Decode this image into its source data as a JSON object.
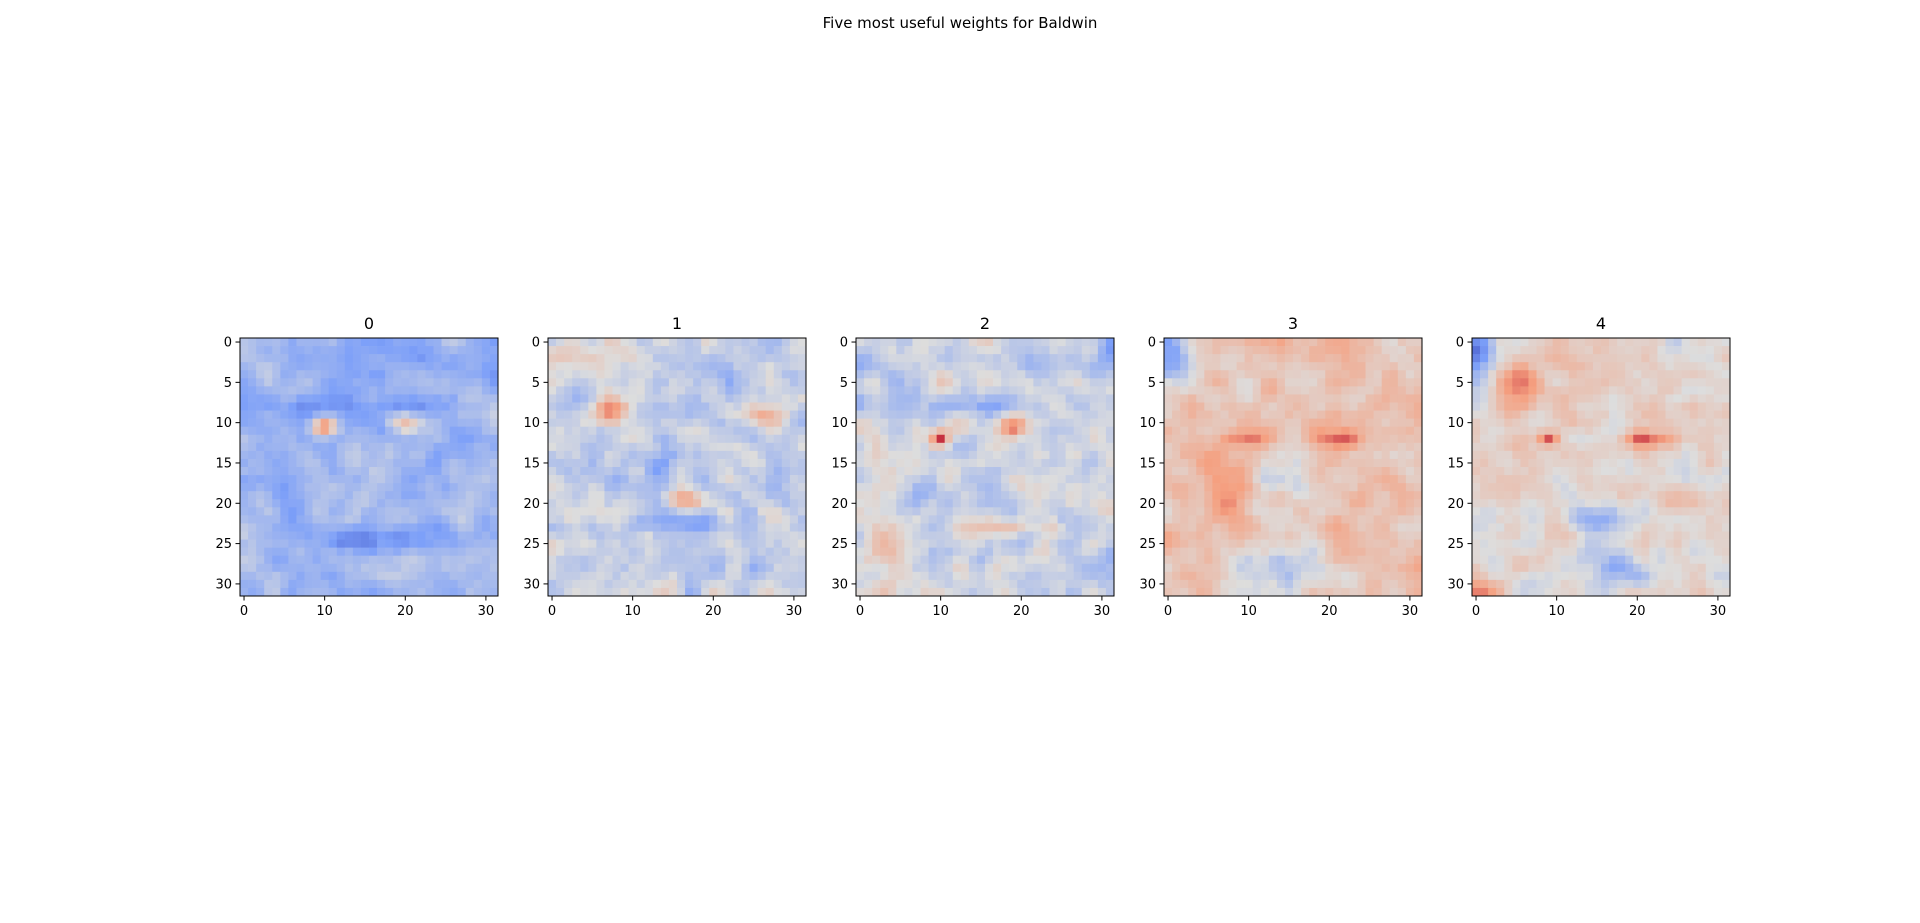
{
  "chart_data": {
    "type": "heatmap",
    "title": "Five most useful weights for Baldwin",
    "colormap": "coolwarm",
    "image_size": [
      32,
      32
    ],
    "xlim": [
      -0.5,
      31.5
    ],
    "ylim": [
      31.5,
      -0.5
    ],
    "xticks": [
      0,
      10,
      20,
      30
    ],
    "yticks": [
      0,
      5,
      10,
      15,
      20,
      25,
      30
    ],
    "xtick_labels": [
      "0",
      "10",
      "20",
      "30"
    ],
    "ytick_labels": [
      "0",
      "5",
      "10",
      "15",
      "20",
      "25",
      "30"
    ],
    "panels": [
      {
        "title": "0",
        "base": -0.45,
        "features": [
          {
            "name": "left-eye",
            "r": 10.5,
            "c": 10,
            "sr": 0.8,
            "sc": 1.2,
            "a": 1.3
          },
          {
            "name": "right-eye",
            "r": 10,
            "c": 20,
            "sr": 0.9,
            "sc": 1.5,
            "a": 0.9
          },
          {
            "name": "brow-left",
            "r": 8,
            "c": 10,
            "sr": 1.0,
            "sc": 3.0,
            "a": -0.5
          },
          {
            "name": "brow-right",
            "r": 8,
            "c": 22,
            "sr": 1.0,
            "sc": 3.0,
            "a": -0.5
          },
          {
            "name": "mouth",
            "r": 24.5,
            "c": 15,
            "sr": 1.2,
            "sc": 5.0,
            "a": -0.45
          },
          {
            "name": "forehead",
            "r": 2,
            "c": 16,
            "sr": 2.0,
            "sc": 7.0,
            "a": -0.25
          },
          {
            "name": "nose",
            "r": 16,
            "c": 15,
            "sr": 3.0,
            "sc": 2.0,
            "a": 0.2
          }
        ],
        "noise": 0.25,
        "seed": 11
      },
      {
        "title": "1",
        "base": -0.2,
        "features": [
          {
            "name": "left-eye",
            "r": 8.5,
            "c": 7,
            "sr": 1.2,
            "sc": 1.5,
            "a": 1.1
          },
          {
            "name": "right-eye",
            "r": 9,
            "c": 26,
            "sr": 1.0,
            "sc": 2.0,
            "a": 0.8
          },
          {
            "name": "cheek",
            "r": 19.5,
            "c": 16,
            "sr": 0.8,
            "sc": 1.8,
            "a": 0.7
          },
          {
            "name": "mouth",
            "r": 22.5,
            "c": 15,
            "sr": 0.8,
            "sc": 3.5,
            "a": -0.6
          },
          {
            "name": "nose",
            "r": 15,
            "c": 14,
            "sr": 3.0,
            "sc": 1.5,
            "a": -0.35
          },
          {
            "name": "top",
            "r": 2,
            "c": 4,
            "sr": 2.0,
            "sc": 3.0,
            "a": 0.4
          }
        ],
        "noise": 0.3,
        "seed": 23
      },
      {
        "title": "2",
        "base": -0.15,
        "features": [
          {
            "name": "left-eye",
            "r": 12,
            "c": 10,
            "sr": 0.7,
            "sc": 0.8,
            "a": 1.5
          },
          {
            "name": "right-eye",
            "r": 10.5,
            "c": 19,
            "sr": 1.0,
            "sc": 1.2,
            "a": 1.0
          },
          {
            "name": "mouth",
            "r": 23,
            "c": 18,
            "sr": 0.7,
            "sc": 3.0,
            "a": 0.6
          },
          {
            "name": "corner",
            "r": 1,
            "c": 31,
            "sr": 2.0,
            "sc": 1.5,
            "a": -0.7
          },
          {
            "name": "left-cheek",
            "r": 26,
            "c": 4,
            "sr": 3.0,
            "sc": 2.0,
            "a": 0.5
          },
          {
            "name": "brow",
            "r": 8,
            "c": 14,
            "sr": 1.0,
            "sc": 4.0,
            "a": -0.4
          }
        ],
        "noise": 0.3,
        "seed": 37
      },
      {
        "title": "3",
        "base": 0.35,
        "features": [
          {
            "name": "left-eye",
            "r": 12,
            "c": 10,
            "sr": 0.8,
            "sc": 2.0,
            "a": 0.6
          },
          {
            "name": "right-eye",
            "r": 12,
            "c": 21,
            "sr": 0.8,
            "sc": 2.0,
            "a": 0.9
          },
          {
            "name": "corner",
            "r": 1.5,
            "c": 0,
            "sr": 3.0,
            "sc": 2.0,
            "a": -1.1
          },
          {
            "name": "chin",
            "r": 28,
            "c": 14,
            "sr": 2.5,
            "sc": 5.0,
            "a": -0.6
          },
          {
            "name": "nose",
            "r": 17,
            "c": 15,
            "sr": 3.0,
            "sc": 2.5,
            "a": -0.3
          },
          {
            "name": "left-cheek",
            "r": 20,
            "c": 7,
            "sr": 3.0,
            "sc": 2.0,
            "a": 0.3
          }
        ],
        "noise": 0.25,
        "seed": 53
      },
      {
        "title": "4",
        "base": 0.15,
        "features": [
          {
            "name": "left-eye",
            "r": 12,
            "c": 9,
            "sr": 0.7,
            "sc": 1.0,
            "a": 1.1
          },
          {
            "name": "right-eye",
            "r": 12,
            "c": 21,
            "sr": 0.7,
            "sc": 2.0,
            "a": 0.8
          },
          {
            "name": "left-brow",
            "r": 5,
            "c": 5,
            "sr": 2.0,
            "sc": 2.5,
            "a": 0.6
          },
          {
            "name": "corner",
            "r": 1.5,
            "c": 0,
            "sr": 3.0,
            "sc": 1.5,
            "a": -1.1
          },
          {
            "name": "mouth",
            "r": 22,
            "c": 15,
            "sr": 1.2,
            "sc": 3.0,
            "a": -0.7
          },
          {
            "name": "chin",
            "r": 28,
            "c": 18,
            "sr": 2.0,
            "sc": 5.0,
            "a": -0.4
          },
          {
            "name": "bottom-left",
            "r": 31,
            "c": 0,
            "sr": 1.5,
            "sc": 1.5,
            "a": 1.0
          }
        ],
        "noise": 0.25,
        "seed": 71
      }
    ]
  }
}
